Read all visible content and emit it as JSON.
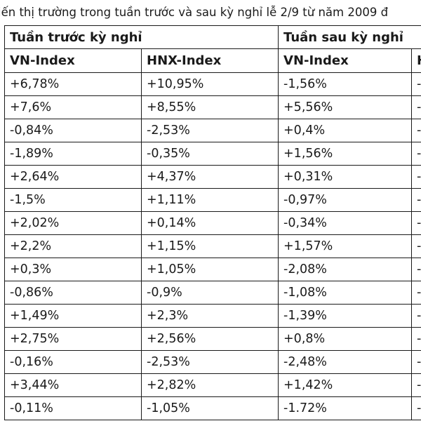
{
  "caption": "iến thị trường trong tuần trước và sau kỳ nghỉ lễ 2/9 từ năm 2009 đ",
  "group_headers": [
    "Tuần trước kỳ nghỉ",
    "Tuần sau kỳ nghỉ"
  ],
  "sub_headers": [
    "VN-Index",
    "HNX-Index",
    "VN-Index",
    "H"
  ],
  "rows": [
    [
      "+6,78%",
      "+10,95%",
      "-1,56%",
      "-"
    ],
    [
      "+7,6%",
      "+8,55%",
      "+5,56%",
      "-"
    ],
    [
      "-0,84%",
      "-2,53%",
      "+0,4%",
      "-"
    ],
    [
      "-1,89%",
      "-0,35%",
      "+1,56%",
      "-"
    ],
    [
      "+2,64%",
      "+4,37%",
      "+0,31%",
      "-"
    ],
    [
      "-1,5%",
      "+1,11%",
      "-0,97%",
      "-"
    ],
    [
      "+2,02%",
      "+0,14%",
      "-0,34%",
      "-"
    ],
    [
      "+2,2%",
      "+1,15%",
      "+1,57%",
      "-"
    ],
    [
      "+0,3%",
      "+1,05%",
      "-2,08%",
      "-"
    ],
    [
      "-0,86%",
      "-0,9%",
      "-1,08%",
      "-"
    ],
    [
      "+1,49%",
      "+2,3%",
      "-1,39%",
      "-"
    ],
    [
      "+2,75%",
      "+2,56%",
      "+0,8%",
      "-"
    ],
    [
      "-0,16%",
      "-2,53%",
      "-2,48%",
      "-"
    ],
    [
      "+3,44%",
      "+2,82%",
      "+1,42%",
      "-"
    ],
    [
      "-0,11%",
      "-1,05%",
      "-1.72%",
      "-"
    ]
  ]
}
